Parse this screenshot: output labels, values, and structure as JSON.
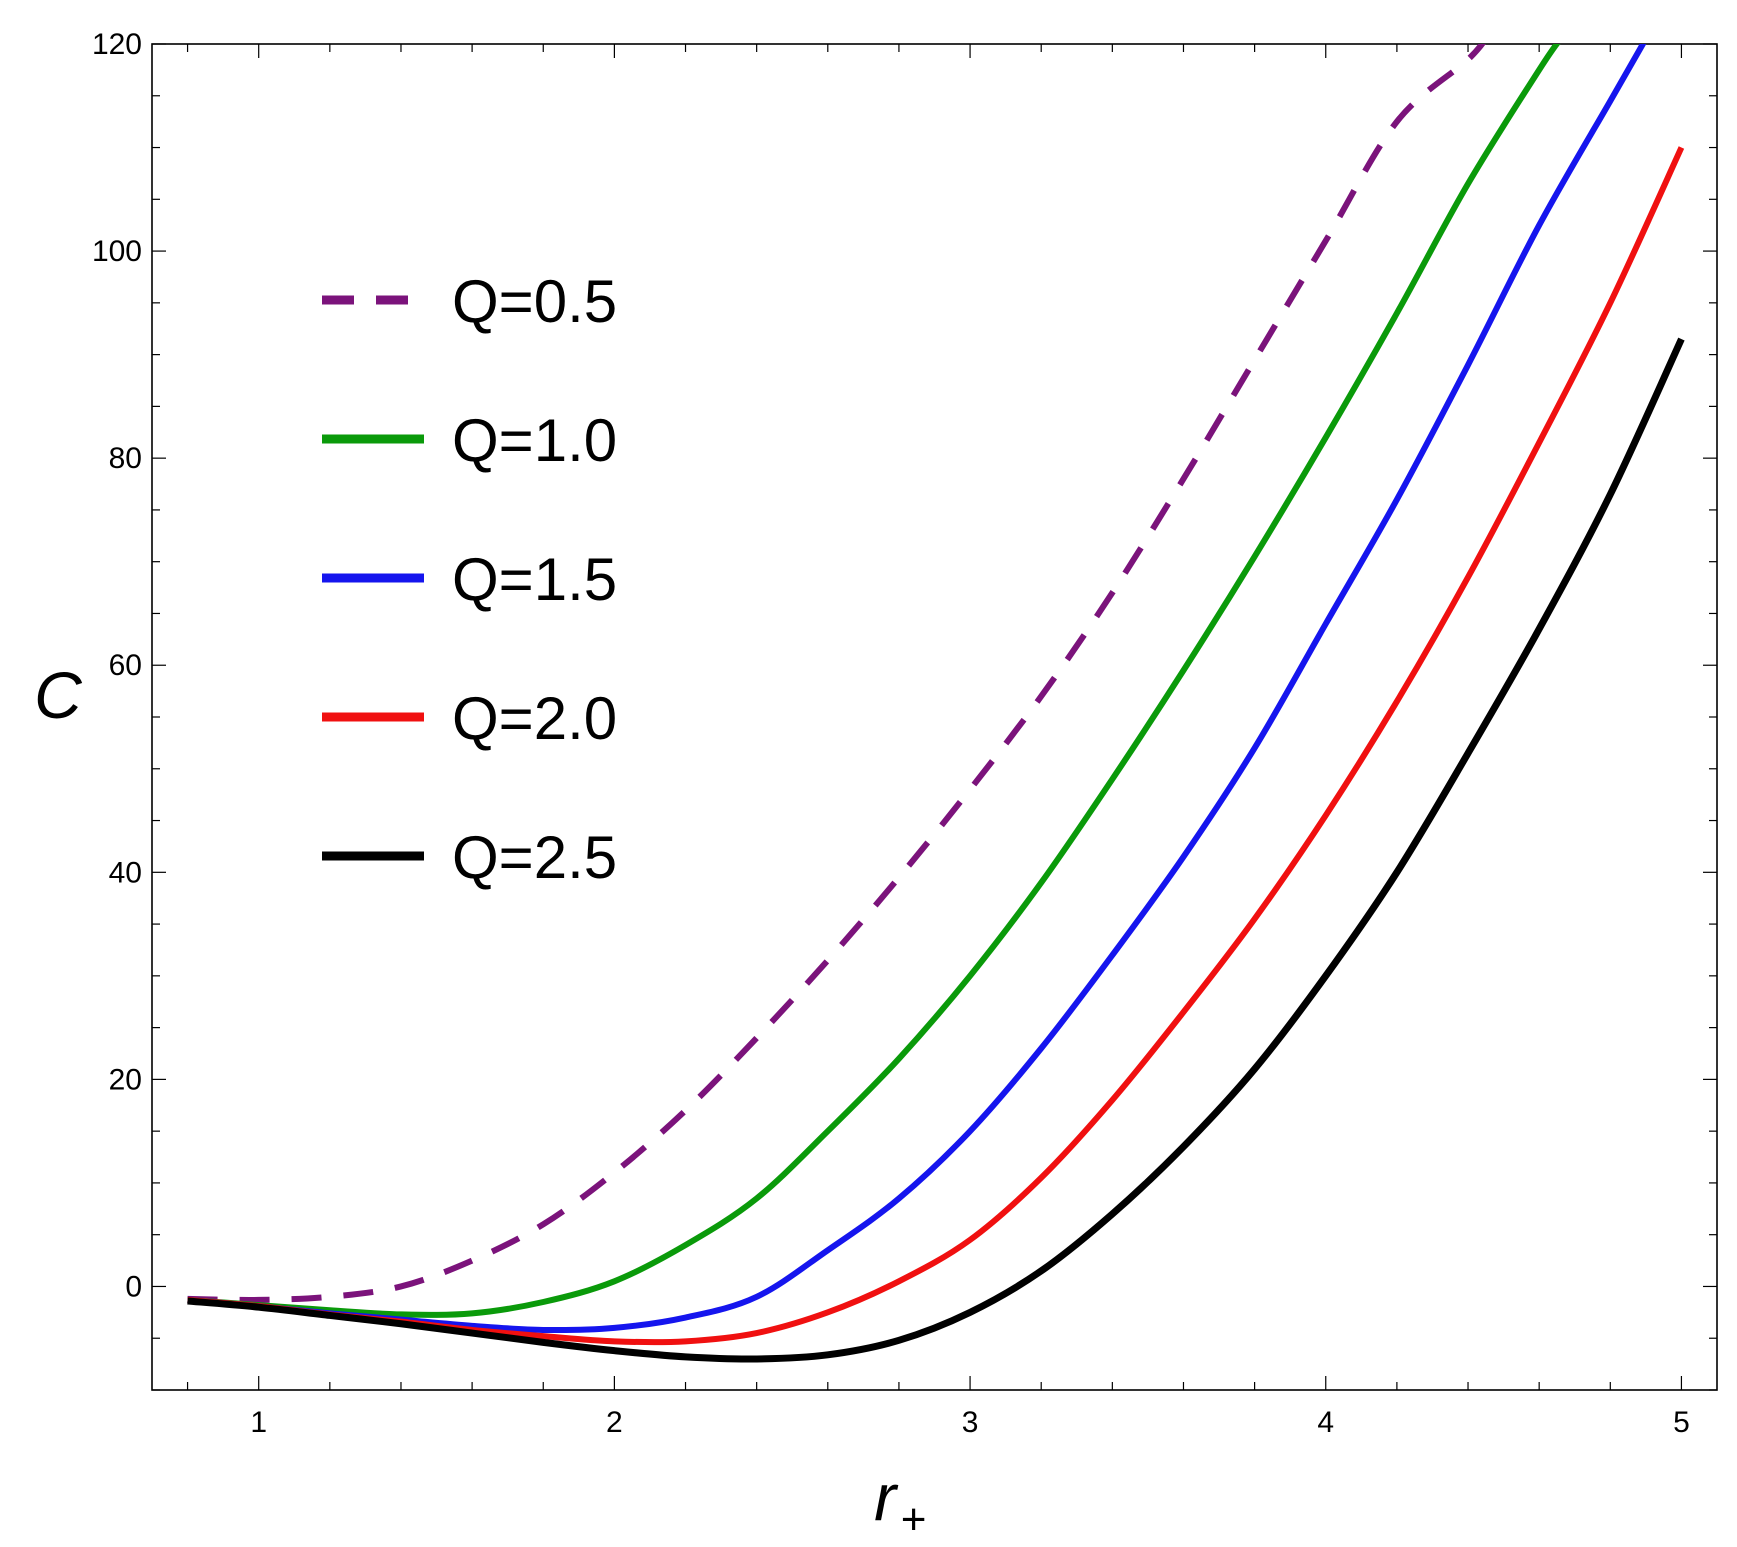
{
  "chart_data": {
    "type": "line",
    "title": "",
    "xlabel": "r",
    "xlabel_subscript": "+",
    "ylabel": "C",
    "xlim": [
      0.7,
      5.1
    ],
    "ylim": [
      -10,
      120
    ],
    "x_ticks": [
      1,
      2,
      3,
      4,
      5
    ],
    "x_tick_labels": [
      "1",
      "2",
      "3",
      "4",
      "5"
    ],
    "y_ticks": [
      0,
      20,
      40,
      60,
      80,
      100,
      120
    ],
    "y_tick_labels": [
      "0",
      "20",
      "40",
      "60",
      "80",
      "100",
      "120"
    ],
    "grid": false,
    "legend_position": "upper-left",
    "series": [
      {
        "name": "Q=0.5",
        "color": "#7b137b",
        "dash": "dashed",
        "x": [
          0.8,
          1.0,
          1.2,
          1.4,
          1.6,
          1.8,
          2.0,
          2.2,
          2.4,
          2.6,
          2.8,
          3.0,
          3.2,
          3.4,
          3.6,
          3.8,
          4.0,
          4.2,
          4.4,
          4.46
        ],
        "y": [
          -1.2,
          -1.3,
          -1.0,
          0.0,
          2.5,
          6.0,
          11.0,
          17.0,
          24.0,
          31.5,
          39.5,
          48.0,
          57.0,
          67.0,
          78.0,
          89.5,
          101.0,
          112.5,
          118.5,
          121.0
        ]
      },
      {
        "name": "Q=1.0",
        "color": "#0a9a0a",
        "dash": "solid",
        "x": [
          0.8,
          1.0,
          1.2,
          1.4,
          1.6,
          1.8,
          2.0,
          2.2,
          2.4,
          2.6,
          2.8,
          3.0,
          3.2,
          3.4,
          3.6,
          3.8,
          4.0,
          4.2,
          4.4,
          4.6,
          4.66
        ],
        "y": [
          -1.3,
          -1.8,
          -2.3,
          -2.7,
          -2.6,
          -1.5,
          0.5,
          4.0,
          8.5,
          15.0,
          22.0,
          30.0,
          39.0,
          49.0,
          59.5,
          70.5,
          82.0,
          94.0,
          106.5,
          117.5,
          120.5
        ]
      },
      {
        "name": "Q=1.5",
        "color": "#1515ee",
        "dash": "solid",
        "x": [
          0.8,
          1.0,
          1.2,
          1.4,
          1.6,
          1.8,
          2.0,
          2.2,
          2.4,
          2.6,
          2.8,
          3.0,
          3.2,
          3.4,
          3.6,
          3.8,
          4.0,
          4.2,
          4.4,
          4.6,
          4.8,
          4.9
        ],
        "y": [
          -1.3,
          -1.9,
          -2.6,
          -3.2,
          -3.8,
          -4.2,
          -4.0,
          -3.0,
          -1.0,
          3.5,
          8.5,
          15.0,
          23.0,
          32.0,
          41.5,
          52.0,
          64.0,
          76.0,
          89.0,
          102.5,
          114.5,
          120.5
        ]
      },
      {
        "name": "Q=2.0",
        "color": "#f01010",
        "dash": "solid",
        "x": [
          0.8,
          1.0,
          1.2,
          1.4,
          1.6,
          1.8,
          2.0,
          2.2,
          2.4,
          2.6,
          2.8,
          3.0,
          3.2,
          3.4,
          3.6,
          3.8,
          4.0,
          4.2,
          4.4,
          4.6,
          4.8,
          5.0
        ],
        "y": [
          -1.3,
          -1.9,
          -2.7,
          -3.4,
          -4.2,
          -4.8,
          -5.3,
          -5.3,
          -4.5,
          -2.5,
          0.5,
          4.5,
          10.5,
          18.0,
          26.5,
          35.5,
          45.5,
          56.5,
          68.5,
          81.5,
          95.0,
          110.0
        ]
      },
      {
        "name": "Q=2.5",
        "color": "#000000",
        "dash": "solid",
        "x": [
          0.8,
          1.0,
          1.2,
          1.4,
          1.6,
          1.8,
          2.0,
          2.2,
          2.4,
          2.6,
          2.8,
          3.0,
          3.2,
          3.4,
          3.6,
          3.8,
          4.0,
          4.2,
          4.4,
          4.6,
          4.8,
          5.0
        ],
        "y": [
          -1.4,
          -2.0,
          -2.8,
          -3.6,
          -4.5,
          -5.4,
          -6.2,
          -6.8,
          -7.0,
          -6.6,
          -5.2,
          -2.5,
          1.5,
          7.0,
          13.5,
          21.0,
          30.0,
          40.0,
          51.5,
          63.5,
          76.5,
          91.5
        ]
      }
    ]
  }
}
